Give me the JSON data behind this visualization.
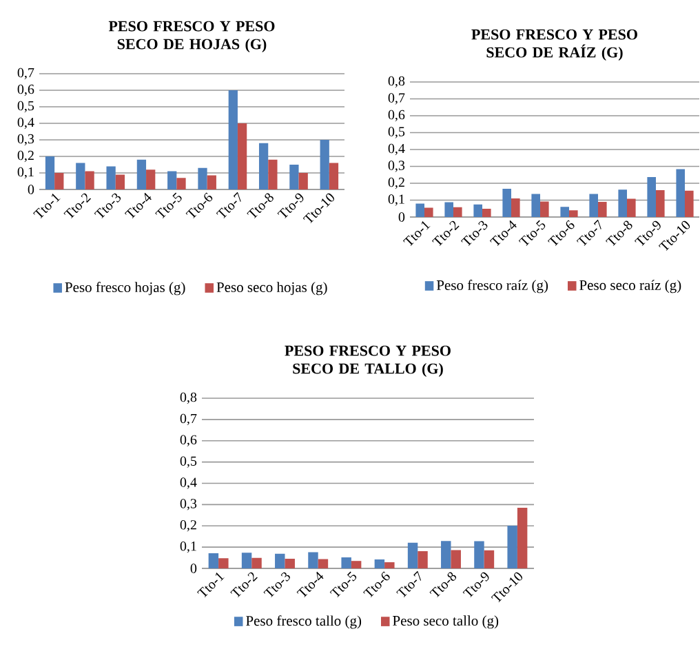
{
  "chart_data": [
    {
      "type": "bar",
      "title": "PESO FRESCO Y PESO SECO DE HOJAS (G)",
      "categories": [
        "Tto-1",
        "Tto-2",
        "Tto-3",
        "Tto-4",
        "Tto-5",
        "Tto-6",
        "Tto-7",
        "Tto-8",
        "Tto-9",
        "Tto-10"
      ],
      "series": [
        {
          "name": "Peso fresco hojas (g)",
          "color": "#4f81bd",
          "values": [
            0.2,
            0.16,
            0.14,
            0.18,
            0.11,
            0.13,
            0.6,
            0.28,
            0.15,
            0.3
          ]
        },
        {
          "name": "Peso seco hojas (g)",
          "color": "#c0504d",
          "values": [
            0.1,
            0.11,
            0.09,
            0.12,
            0.07,
            0.085,
            0.4,
            0.18,
            0.1,
            0.16
          ]
        }
      ],
      "ylim": [
        0,
        0.7
      ],
      "yticks": [
        0,
        {
          "value": 0.1,
          "label": "0,1"
        },
        {
          "value": 0.2,
          "label": "0,2"
        },
        {
          "value": 0.3,
          "label": "0,3"
        },
        {
          "value": 0.4,
          "label": "0,4"
        },
        {
          "value": 0.5,
          "label": "0,5"
        },
        {
          "value": 0.6,
          "label": "0,6"
        },
        {
          "value": 0.7,
          "label": "0,7"
        }
      ],
      "grid": "y",
      "legend": "bottom"
    },
    {
      "type": "bar",
      "title": "PESO FRESCO Y PESO SECO DE RAÍZ (G)",
      "categories": [
        "Tto-1",
        "Tto-2",
        "Tto-3",
        "Tto-4",
        "Tto-5",
        "Tto-6",
        "Tto-7",
        "Tto-8",
        "Tto-9",
        "Tto-10"
      ],
      "series": [
        {
          "name": "Peso fresco raíz (g)",
          "color": "#4f81bd",
          "values": [
            0.08,
            0.088,
            0.074,
            0.167,
            0.137,
            0.06,
            0.137,
            0.162,
            0.237,
            0.284
          ]
        },
        {
          "name": "Peso seco raíz (g)",
          "color": "#c0504d",
          "values": [
            0.055,
            0.058,
            0.049,
            0.11,
            0.092,
            0.04,
            0.09,
            0.108,
            0.159,
            0.156
          ]
        }
      ],
      "ylim": [
        0,
        0.8
      ],
      "yticks": [
        0,
        {
          "value": 0.1,
          "label": "0,1"
        },
        {
          "value": 0.2,
          "label": "0,2"
        },
        {
          "value": 0.3,
          "label": "0,3"
        },
        {
          "value": 0.4,
          "label": "0,4"
        },
        {
          "value": 0.5,
          "label": "0,5"
        },
        {
          "value": 0.6,
          "label": "0,6"
        },
        {
          "value": 0.7,
          "label": "0,7"
        },
        {
          "value": 0.8,
          "label": "0,8"
        }
      ],
      "grid": "y",
      "legend": "bottom"
    },
    {
      "type": "bar",
      "title": "PESO FRESCO Y PESO SECO DE TALLO (G)",
      "categories": [
        "Tto-1",
        "Tto-2",
        "Tto-3",
        "Tto-4",
        "Tto-5",
        "Tto-6",
        "Tto-7",
        "Tto-8",
        "Tto-9",
        "Tto-10"
      ],
      "series": [
        {
          "name": "Peso fresco tallo (g)",
          "color": "#4f81bd",
          "values": [
            0.071,
            0.074,
            0.069,
            0.076,
            0.052,
            0.042,
            0.121,
            0.129,
            0.128,
            0.201
          ]
        },
        {
          "name": "Peso seco tallo (g)",
          "color": "#c0504d",
          "values": [
            0.048,
            0.049,
            0.045,
            0.044,
            0.035,
            0.029,
            0.081,
            0.086,
            0.085,
            0.285
          ]
        }
      ],
      "ylim": [
        0,
        0.8
      ],
      "yticks": [
        0,
        {
          "value": 0.1,
          "label": "0,1"
        },
        {
          "value": 0.2,
          "label": "0,2"
        },
        {
          "value": 0.3,
          "label": "0,3"
        },
        {
          "value": 0.4,
          "label": "0,4"
        },
        {
          "value": 0.5,
          "label": "0,5"
        },
        {
          "value": 0.6,
          "label": "0,6"
        },
        {
          "value": 0.7,
          "label": "0,7"
        },
        {
          "value": 0.8,
          "label": "0,8"
        }
      ],
      "grid": "y",
      "legend": "bottom"
    }
  ]
}
